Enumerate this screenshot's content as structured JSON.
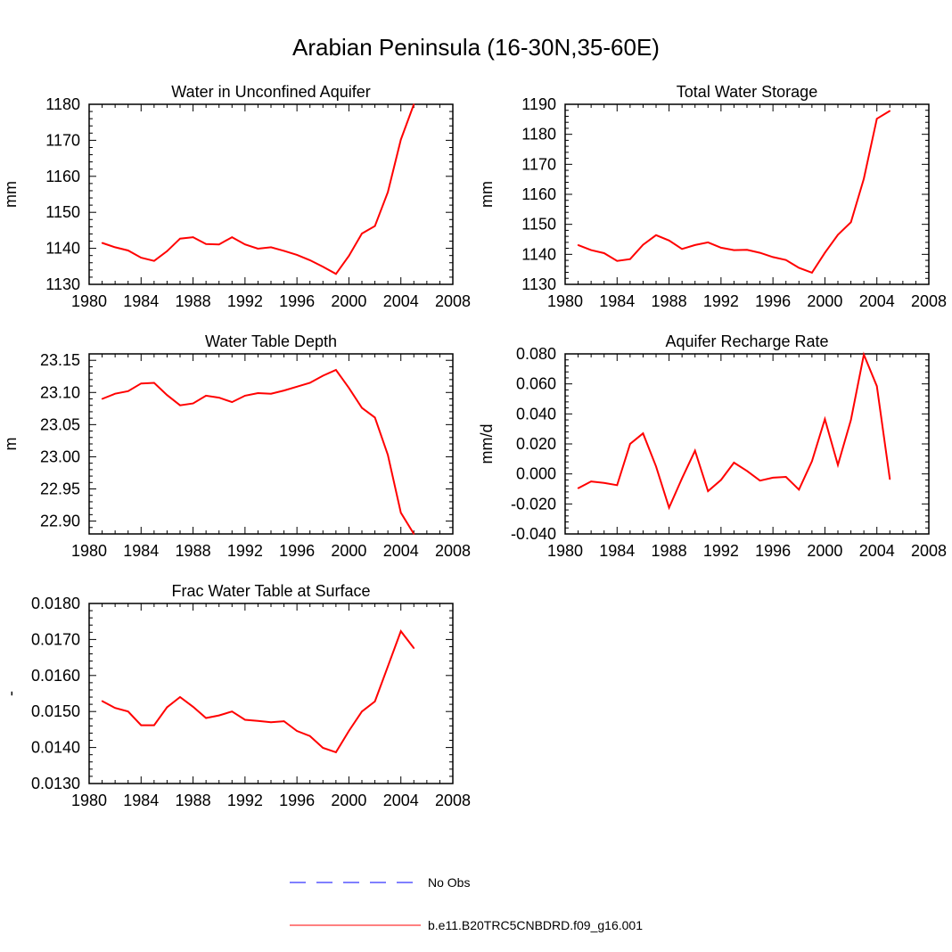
{
  "title": "Arabian Peninsula (16-30N,35-60E)",
  "legend": [
    {
      "label": "No Obs",
      "color": "#0000ff",
      "dash": true
    },
    {
      "label": "b.e11.B20TRC5CNBDRD.f09_g16.001",
      "color": "#ff0000",
      "dash": false
    }
  ],
  "series_color": "#ff0000",
  "chart_data": [
    {
      "type": "line",
      "title": "Water in Unconfined Aquifer",
      "ylabel": "mm",
      "xlim": [
        1980,
        2008
      ],
      "ylim": [
        1130,
        1180
      ],
      "xticks": [
        1980,
        1984,
        1988,
        1992,
        1996,
        2000,
        2004,
        2008
      ],
      "yticks": [
        1130,
        1140,
        1150,
        1160,
        1170,
        1180
      ],
      "ytick_labels": [
        "1130",
        "1140",
        "1150",
        "1160",
        "1170",
        "1180"
      ],
      "x": [
        1981,
        1982,
        1983,
        1984,
        1985,
        1986,
        1987,
        1988,
        1989,
        1990,
        1991,
        1992,
        1993,
        1994,
        1995,
        1996,
        1997,
        1998,
        1999,
        2000,
        2001,
        2002,
        2003,
        2004,
        2005
      ],
      "values": [
        1141.5,
        1140.3,
        1139.4,
        1137.4,
        1136.5,
        1139.2,
        1142.7,
        1143.1,
        1141.2,
        1141.1,
        1143.1,
        1141.1,
        1139.9,
        1140.3,
        1139.3,
        1138.2,
        1136.7,
        1134.9,
        1132.9,
        1137.9,
        1144.1,
        1146.2,
        1155.6,
        1170.2,
        1180.0
      ],
      "grid": false
    },
    {
      "type": "line",
      "title": "Total Water Storage",
      "ylabel": "mm",
      "xlim": [
        1980,
        2008
      ],
      "ylim": [
        1130,
        1190
      ],
      "xticks": [
        1980,
        1984,
        1988,
        1992,
        1996,
        2000,
        2004,
        2008
      ],
      "yticks": [
        1130,
        1140,
        1150,
        1160,
        1170,
        1180,
        1190
      ],
      "ytick_labels": [
        "1130",
        "1140",
        "1150",
        "1160",
        "1170",
        "1180",
        "1190"
      ],
      "x": [
        1981,
        1982,
        1983,
        1984,
        1985,
        1986,
        1987,
        1988,
        1989,
        1990,
        1991,
        1992,
        1993,
        1994,
        1995,
        1996,
        1997,
        1998,
        1999,
        2000,
        2001,
        2002,
        2003,
        2004,
        2005
      ],
      "values": [
        1143.1,
        1141.4,
        1140.4,
        1137.8,
        1138.4,
        1143.2,
        1146.4,
        1144.6,
        1141.8,
        1143.1,
        1144.0,
        1142.2,
        1141.4,
        1141.5,
        1140.5,
        1139.1,
        1138.1,
        1135.5,
        1133.9,
        1140.5,
        1146.5,
        1150.7,
        1165.2,
        1185.2,
        1187.8
      ],
      "grid": false
    },
    {
      "type": "line",
      "title": "Water Table Depth",
      "ylabel": "m",
      "xlim": [
        1980,
        2008
      ],
      "ylim": [
        22.88,
        23.16
      ],
      "xticks": [
        1980,
        1984,
        1988,
        1992,
        1996,
        2000,
        2004,
        2008
      ],
      "yticks": [
        22.9,
        22.95,
        23.0,
        23.05,
        23.1,
        23.15
      ],
      "ytick_labels": [
        "22.90",
        "22.95",
        "23.00",
        "23.05",
        "23.10",
        "23.15"
      ],
      "x": [
        1981,
        1982,
        1983,
        1984,
        1985,
        1986,
        1987,
        1988,
        1989,
        1990,
        1991,
        1992,
        1993,
        1994,
        1995,
        1996,
        1997,
        1998,
        1999,
        2000,
        2001,
        2002,
        2003,
        2004,
        2005
      ],
      "values": [
        23.09,
        23.098,
        23.102,
        23.114,
        23.115,
        23.096,
        23.08,
        23.083,
        23.095,
        23.092,
        23.085,
        23.095,
        23.099,
        23.098,
        23.103,
        23.109,
        23.115,
        23.126,
        23.135,
        23.107,
        23.076,
        23.061,
        23.003,
        22.913,
        22.88
      ],
      "grid": false
    },
    {
      "type": "line",
      "title": "Aquifer Recharge Rate",
      "ylabel": "mm/d",
      "xlim": [
        1980,
        2008
      ],
      "ylim": [
        -0.04,
        0.08
      ],
      "xticks": [
        1980,
        1984,
        1988,
        1992,
        1996,
        2000,
        2004,
        2008
      ],
      "yticks": [
        -0.04,
        -0.02,
        0.0,
        0.02,
        0.04,
        0.06,
        0.08
      ],
      "ytick_labels": [
        "-0.040",
        "-0.020",
        "0.000",
        "0.020",
        "0.040",
        "0.060",
        "0.080"
      ],
      "x": [
        1981,
        1982,
        1983,
        1984,
        1985,
        1986,
        1987,
        1988,
        1989,
        1990,
        1991,
        1992,
        1993,
        1994,
        1995,
        1996,
        1997,
        1998,
        1999,
        2000,
        2001,
        2002,
        2003,
        2004,
        2005
      ],
      "values": [
        -0.0095,
        -0.005,
        -0.006,
        -0.0075,
        0.02,
        0.027,
        0.005,
        -0.0225,
        -0.003,
        0.0155,
        -0.0115,
        -0.004,
        0.0075,
        0.002,
        -0.0045,
        -0.0025,
        -0.002,
        -0.0105,
        0.0085,
        0.0365,
        0.006,
        0.036,
        0.0795,
        0.0585,
        -0.0035
      ],
      "grid": false
    },
    {
      "type": "line",
      "title": "Frac Water Table at Surface",
      "ylabel": "-",
      "xlim": [
        1980,
        2008
      ],
      "ylim": [
        0.013,
        0.018
      ],
      "xticks": [
        1980,
        1984,
        1988,
        1992,
        1996,
        2000,
        2004,
        2008
      ],
      "yticks": [
        0.013,
        0.014,
        0.015,
        0.016,
        0.017,
        0.018
      ],
      "ytick_labels": [
        "0.0130",
        "0.0140",
        "0.0150",
        "0.0160",
        "0.0170",
        "0.0180"
      ],
      "x": [
        1981,
        1982,
        1983,
        1984,
        1985,
        1986,
        1987,
        1988,
        1989,
        1990,
        1991,
        1992,
        1993,
        1994,
        1995,
        1996,
        1997,
        1998,
        1999,
        2000,
        2001,
        2002,
        2003,
        2004,
        2005
      ],
      "values": [
        0.01529,
        0.0151,
        0.015,
        0.01462,
        0.01462,
        0.01512,
        0.0154,
        0.01513,
        0.01482,
        0.01489,
        0.015,
        0.01477,
        0.01474,
        0.0147,
        0.01473,
        0.01446,
        0.01432,
        0.01399,
        0.01387,
        0.01446,
        0.015,
        0.01528,
        0.01625,
        0.01723,
        0.01676
      ],
      "grid": false
    }
  ]
}
